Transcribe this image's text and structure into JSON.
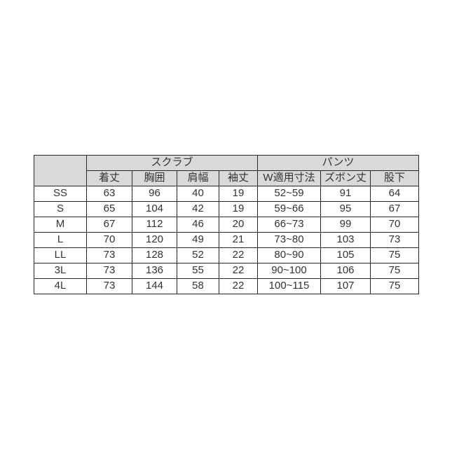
{
  "chart_data": {
    "type": "table",
    "group_headers": [
      {
        "label": "スクラブ",
        "colspan": 4
      },
      {
        "label": "パンツ",
        "colspan": 3
      }
    ],
    "columns": [
      "着丈",
      "胸囲",
      "肩幅",
      "袖丈",
      "W適用寸法",
      "ズボン丈",
      "股下"
    ],
    "rows": [
      {
        "size": "SS",
        "values": [
          "63",
          "96",
          "40",
          "19",
          "52~59",
          "91",
          "64"
        ]
      },
      {
        "size": "S",
        "values": [
          "65",
          "104",
          "42",
          "19",
          "59~66",
          "95",
          "67"
        ]
      },
      {
        "size": "M",
        "values": [
          "67",
          "112",
          "46",
          "20",
          "66~73",
          "99",
          "70"
        ]
      },
      {
        "size": "L",
        "values": [
          "70",
          "120",
          "49",
          "21",
          "73~80",
          "103",
          "73"
        ]
      },
      {
        "size": "LL",
        "values": [
          "73",
          "128",
          "52",
          "22",
          "80~90",
          "105",
          "75"
        ]
      },
      {
        "size": "3L",
        "values": [
          "73",
          "136",
          "55",
          "22",
          "90~100",
          "106",
          "75"
        ]
      },
      {
        "size": "4L",
        "values": [
          "73",
          "144",
          "58",
          "22",
          "100~115",
          "107",
          "75"
        ]
      }
    ]
  },
  "colors": {
    "header_bg": "#d9d9d9",
    "border": "#262626",
    "text": "#333333",
    "page_bg": "#ffffff"
  }
}
